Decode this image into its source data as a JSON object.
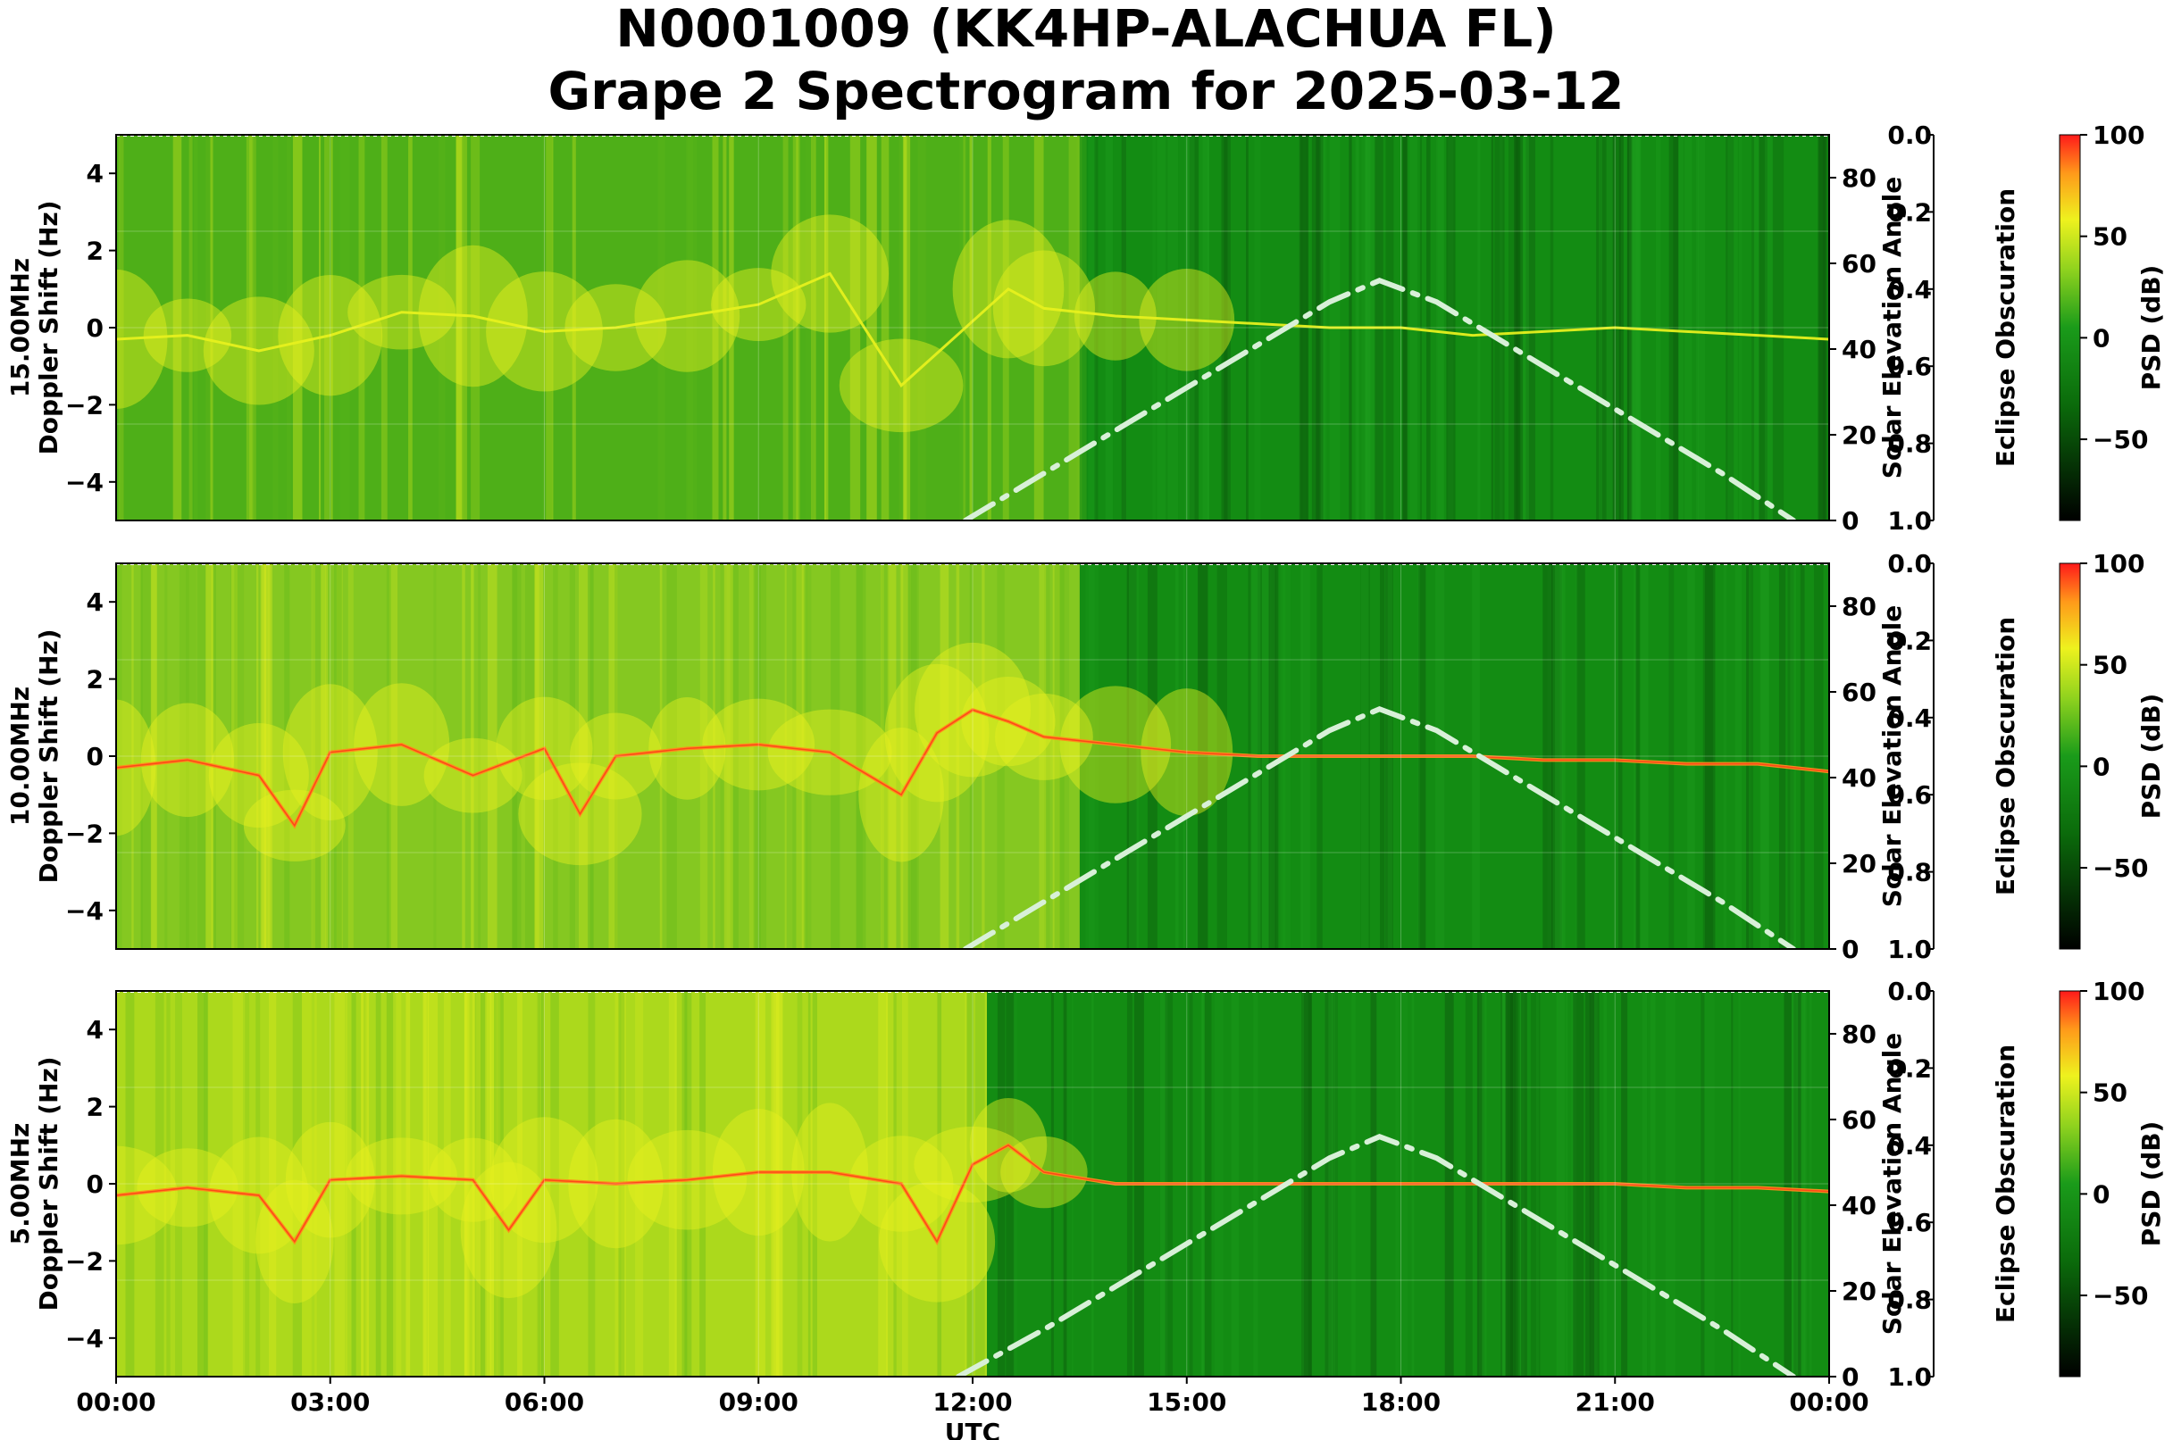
{
  "title_line1": "N0001009 (KK4HP-ALACHUA FL)",
  "title_line2": "Grape 2 Spectrogram for 2025-03-12",
  "colors": {
    "spec_dark": "#0a4a0a",
    "spec_green": "#138c13",
    "spec_lightgreen": "#7fcc1e",
    "spec_yellow": "#e6f01e",
    "spec_orange": "#ff8c1a",
    "spec_red": "#ff2a1a",
    "solar_curve": "#d8f0d8"
  },
  "chart_data": [
    {
      "type": "heatmap",
      "name": "15.00MHz",
      "ylabel_line1": "15.00MHz",
      "ylabel_line2": "Doppler Shift (Hz)",
      "ylim": [
        -5,
        5
      ],
      "yticks": [
        "4",
        "2",
        "0",
        "−2",
        "−4"
      ],
      "xlabel": "",
      "right_label": "Solar Elevation Angle",
      "right_ylim": [
        0,
        90
      ],
      "right_ticks": [
        "80",
        "60",
        "40",
        "20",
        "0"
      ],
      "obscuration_label": "Eclipse Obscuration",
      "obscuration_ticks": [
        "0.0",
        "0.2",
        "0.4",
        "0.6",
        "0.8",
        "1.0"
      ],
      "colorbar_label": "PSD (dB)",
      "colorbar_ticks": [
        "100",
        "50",
        "0",
        "−50"
      ],
      "colorbar_range": [
        -90,
        100
      ],
      "solar_elevation": {
        "x_hours": [
          11.9,
          13,
          14,
          15,
          16,
          17,
          17.7,
          18.5,
          19.5,
          20.5,
          21.5,
          22.5,
          23.5
        ],
        "y_deg": [
          0,
          11,
          21,
          31,
          41,
          51,
          56,
          51,
          41,
          31,
          21,
          11,
          0
        ]
      },
      "trace": {
        "x_hours": [
          0,
          1,
          2,
          3,
          4,
          5,
          6,
          7,
          8,
          9,
          10,
          11,
          12.5,
          13,
          14,
          15,
          16,
          17,
          18,
          19,
          20,
          21,
          22,
          23,
          24
        ],
        "doppler_hz": [
          -0.3,
          -0.2,
          -0.6,
          -0.2,
          0.4,
          0.3,
          -0.1,
          0.0,
          0.3,
          0.6,
          1.4,
          -1.5,
          1.0,
          0.5,
          0.3,
          0.2,
          0.1,
          0.0,
          0.0,
          -0.2,
          -0.1,
          0.0,
          -0.1,
          -0.2,
          -0.3
        ]
      }
    },
    {
      "type": "heatmap",
      "name": "10.00MHz",
      "ylabel_line1": "10.00MHz",
      "ylabel_line2": "Doppler Shift (Hz)",
      "ylim": [
        -5,
        5
      ],
      "yticks": [
        "4",
        "2",
        "0",
        "−2",
        "−4"
      ],
      "xlabel": "",
      "right_label": "Solar Elevation Angle",
      "right_ylim": [
        0,
        90
      ],
      "right_ticks": [
        "80",
        "60",
        "40",
        "20",
        "0"
      ],
      "obscuration_label": "Eclipse Obscuration",
      "obscuration_ticks": [
        "0.0",
        "0.2",
        "0.4",
        "0.6",
        "0.8",
        "1.0"
      ],
      "colorbar_label": "PSD (dB)",
      "colorbar_ticks": [
        "100",
        "50",
        "0",
        "−50"
      ],
      "colorbar_range": [
        -90,
        100
      ],
      "solar_elevation": {
        "x_hours": [
          11.9,
          13,
          14,
          15,
          16,
          17,
          17.7,
          18.5,
          19.5,
          20.5,
          21.5,
          22.5,
          23.5
        ],
        "y_deg": [
          0,
          11,
          21,
          31,
          41,
          51,
          56,
          51,
          41,
          31,
          21,
          11,
          0
        ]
      },
      "trace": {
        "x_hours": [
          0,
          1,
          2,
          2.5,
          3,
          4,
          5,
          6,
          6.5,
          7,
          8,
          9,
          10,
          11,
          11.5,
          12,
          12.5,
          13,
          14,
          15,
          16,
          17,
          18,
          19,
          20,
          21,
          22,
          23,
          24
        ],
        "doppler_hz": [
          -0.3,
          -0.1,
          -0.5,
          -1.8,
          0.1,
          0.3,
          -0.5,
          0.2,
          -1.5,
          0.0,
          0.2,
          0.3,
          0.1,
          -1.0,
          0.6,
          1.2,
          0.9,
          0.5,
          0.3,
          0.1,
          0.0,
          0.0,
          0.0,
          0.0,
          -0.1,
          -0.1,
          -0.2,
          -0.2,
          -0.4
        ]
      }
    },
    {
      "type": "heatmap",
      "name": "5.00MHz",
      "ylabel_line1": "5.00MHz",
      "ylabel_line2": "Doppler Shift (Hz)",
      "ylim": [
        -5,
        5
      ],
      "yticks": [
        "4",
        "2",
        "0",
        "−2",
        "−4"
      ],
      "xlabel": "UTC",
      "xticks": [
        "00:00",
        "03:00",
        "06:00",
        "09:00",
        "12:00",
        "15:00",
        "18:00",
        "21:00",
        "00:00"
      ],
      "right_label": "Solar Elevation Angle",
      "right_ylim": [
        0,
        90
      ],
      "right_ticks": [
        "80",
        "60",
        "40",
        "20",
        "0"
      ],
      "obscuration_label": "Eclipse Obscuration",
      "obscuration_ticks": [
        "0.0",
        "0.2",
        "0.4",
        "0.6",
        "0.8",
        "1.0"
      ],
      "colorbar_label": "PSD (dB)",
      "colorbar_ticks": [
        "100",
        "50",
        "0",
        "−50"
      ],
      "colorbar_range": [
        -90,
        100
      ],
      "solar_elevation": {
        "x_hours": [
          11.8,
          13,
          14,
          15,
          16,
          17,
          17.7,
          18.5,
          19.5,
          20.5,
          21.5,
          22.5,
          23.5
        ],
        "y_deg": [
          0,
          11,
          21,
          31,
          41,
          51,
          56,
          51,
          41,
          31,
          21,
          11,
          0
        ]
      },
      "trace": {
        "x_hours": [
          0,
          1,
          2,
          2.5,
          3,
          4,
          5,
          5.5,
          6,
          7,
          8,
          9,
          10,
          11,
          11.5,
          12,
          12.5,
          13,
          14,
          15,
          16,
          17,
          18,
          19,
          20,
          21,
          22,
          23,
          24
        ],
        "doppler_hz": [
          -0.3,
          -0.1,
          -0.3,
          -1.5,
          0.1,
          0.2,
          0.1,
          -1.2,
          0.1,
          0.0,
          0.1,
          0.3,
          0.3,
          0.0,
          -1.5,
          0.5,
          1.0,
          0.3,
          0.0,
          0.0,
          0.0,
          0.0,
          0.0,
          0.0,
          0.0,
          0.0,
          -0.1,
          -0.1,
          -0.2
        ]
      }
    }
  ]
}
